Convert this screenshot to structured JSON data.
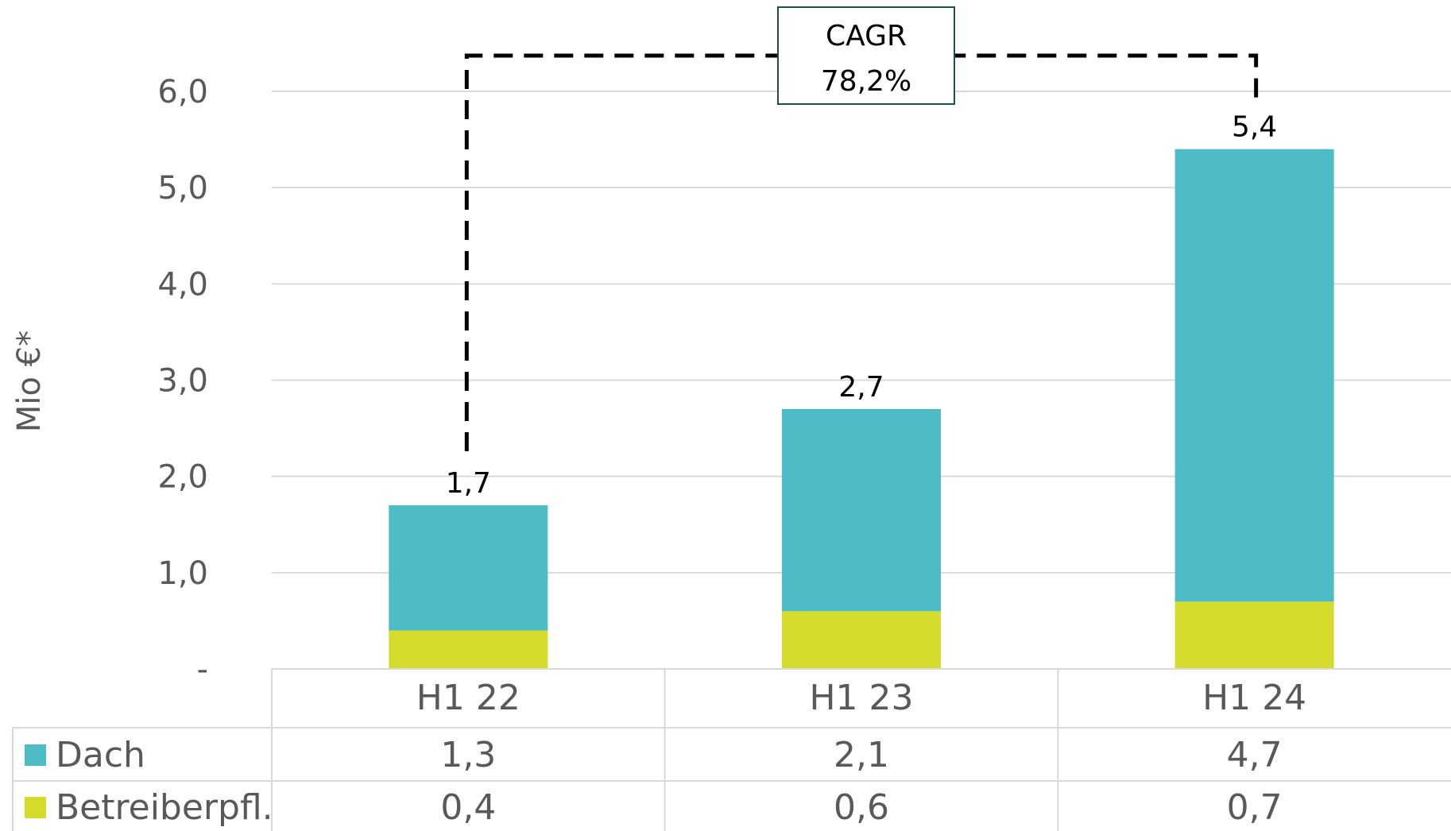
{
  "chart_data": {
    "type": "bar",
    "stacked": true,
    "categories": [
      "H1 22",
      "H1 23",
      "H1 24"
    ],
    "series": [
      {
        "name": "Dach",
        "values": [
          1.3,
          2.1,
          4.7
        ],
        "value_labels": [
          "1,3",
          "2,1",
          "4,7"
        ],
        "color": "#4dbcc7"
      },
      {
        "name": "Betreiberpfl.",
        "values": [
          0.4,
          0.6,
          0.7
        ],
        "value_labels": [
          "0,4",
          "0,6",
          "0,7"
        ],
        "color": "#d4db2b"
      }
    ],
    "totals": [
      1.7,
      2.7,
      5.4
    ],
    "total_labels": [
      "1,7",
      "2,7",
      "5,4"
    ],
    "ylabel": "Mio €*",
    "ylim": [
      0,
      6.0
    ],
    "yticks": [
      0,
      1,
      2,
      3,
      4,
      5,
      6
    ],
    "ytick_labels": [
      "-",
      "1,0",
      "2,0",
      "3,0",
      "4,0",
      "5,0",
      "6,0"
    ],
    "grid": true,
    "legend": "data-table",
    "annotation": {
      "line1": "CAGR",
      "line2": "78,2%",
      "from_category": "H1 22",
      "to_category": "H1 24"
    }
  }
}
